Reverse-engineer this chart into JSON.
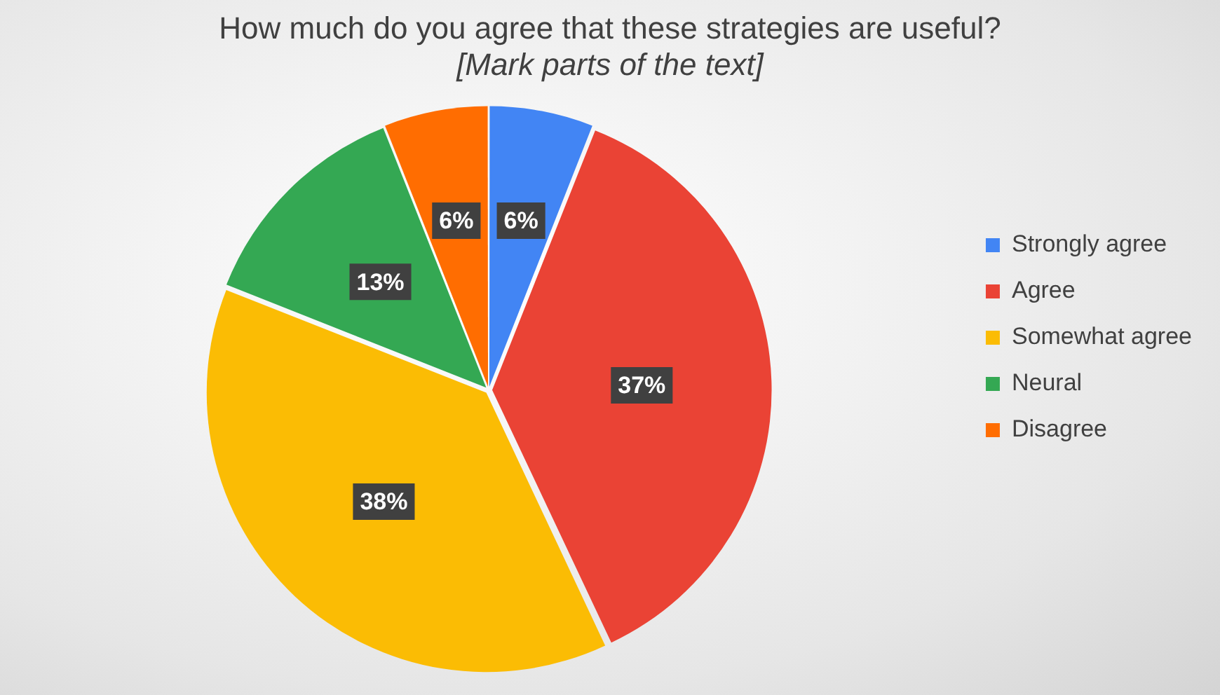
{
  "chart_data": {
    "type": "pie",
    "title": "How much do you agree that these strategies are useful?",
    "subtitle": "[Mark parts of the text]",
    "categories": [
      "Strongly agree",
      "Agree",
      "Somewhat agree",
      "Neural",
      "Disagree"
    ],
    "values": [
      6,
      37,
      38,
      13,
      6
    ],
    "colors": [
      "#4285f4",
      "#ea4335",
      "#fbbc04",
      "#34a853",
      "#ff6d01"
    ],
    "value_labels": [
      "6%",
      "37%",
      "38%",
      "13%",
      "6%"
    ],
    "legend": "right"
  }
}
